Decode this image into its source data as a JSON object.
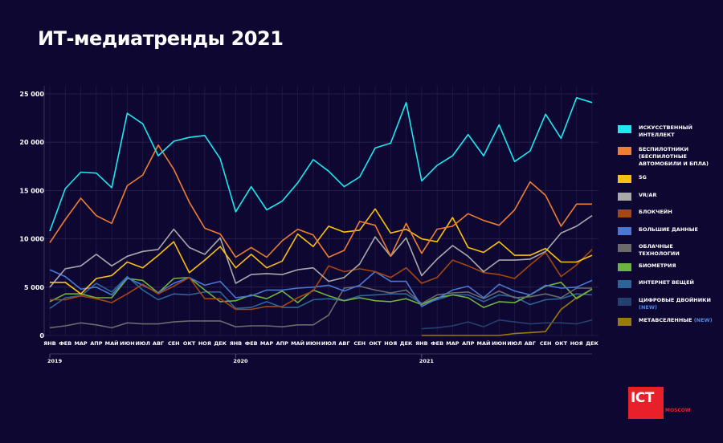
{
  "title": "ИТ-медиатренды 2021",
  "logo": {
    "text": "ICT",
    "subtext": "MOSCOW",
    "color": "#e8202a"
  },
  "chart_data": {
    "type": "line",
    "title": "",
    "ylim": [
      0,
      25000
    ],
    "yticks": [
      "0",
      "5 000",
      "10 000",
      "15 000",
      "20 000",
      "25 000"
    ],
    "ytick_values": [
      0,
      5000,
      10000,
      15000,
      20000,
      25000
    ],
    "grid": true,
    "legend_position": "right",
    "months": [
      "ЯНВ",
      "ФЕВ",
      "МАР",
      "АПР",
      "МАЙ",
      "ИЮН",
      "ИЮЛ",
      "АВГ",
      "СЕН",
      "ОКТ",
      "НОЯ",
      "ДЕК"
    ],
    "years": [
      "2019",
      "2020",
      "2021"
    ],
    "series": [
      {
        "name": "ИСКУССТВЕННЫЙ ИНТЕЛЛЕКТ",
        "color": "#1de9f0",
        "values": [
          10800,
          15200,
          16900,
          16800,
          15300,
          23000,
          21900,
          18600,
          20100,
          20500,
          20700,
          18300,
          12800,
          15400,
          13000,
          13900,
          15800,
          18200,
          17000,
          15400,
          16400,
          19400,
          19900,
          24100,
          16000,
          17600,
          18600,
          20800,
          18600,
          21800,
          18000,
          19100,
          22900,
          20400,
          24600,
          24100
        ]
      },
      {
        "name": "БЕСПИЛОТНИКИ (БЕСПИЛОТНЫЕ АВТОМОБИЛИ И БПЛА)",
        "color": "#ef7d32",
        "values": [
          9600,
          12000,
          14200,
          12400,
          11600,
          15500,
          16600,
          19700,
          17200,
          13800,
          11100,
          10500,
          8100,
          9100,
          8100,
          9800,
          11000,
          10400,
          8100,
          8800,
          11800,
          11400,
          8200,
          11600,
          8500,
          11000,
          11300,
          12600,
          11900,
          11400,
          13000,
          15900,
          14500,
          11300,
          13600,
          13600
        ]
      },
      {
        "name": "5G",
        "color": "#fdc00f",
        "values": [
          5500,
          5500,
          4300,
          5900,
          6200,
          7600,
          7000,
          8300,
          9700,
          6500,
          7800,
          9200,
          7000,
          8400,
          7000,
          7700,
          10500,
          9200,
          11300,
          10700,
          10900,
          13100,
          10600,
          11000,
          10000,
          9700,
          12200,
          9100,
          8600,
          9700,
          8300,
          8300,
          9000,
          7600,
          7600,
          8300
        ]
      },
      {
        "name": "VR/AR",
        "color": "#a9a9ab",
        "values": [
          5000,
          6900,
          7200,
          8400,
          7200,
          8200,
          8700,
          8900,
          11000,
          9100,
          8400,
          10100,
          5400,
          6300,
          6400,
          6300,
          6800,
          7000,
          5600,
          6000,
          7400,
          10200,
          8200,
          10100,
          6200,
          7900,
          9300,
          8200,
          6600,
          7800,
          7800,
          7900,
          8700,
          10600,
          11300,
          12400
        ]
      },
      {
        "name": "БЛОКЧЕЙН",
        "color": "#a5470f",
        "values": [
          3700,
          3700,
          4100,
          3800,
          3400,
          4300,
          5300,
          4300,
          5100,
          6000,
          3800,
          3800,
          2700,
          2700,
          3000,
          3000,
          3900,
          4600,
          7200,
          6600,
          6900,
          6600,
          6000,
          7000,
          5400,
          6000,
          7800,
          7200,
          6500,
          6300,
          5900,
          7300,
          8600,
          6100,
          7300,
          8900
        ]
      },
      {
        "name": "БОЛЬШИЕ ДАННЫЕ",
        "color": "#4877d4",
        "values": [
          6800,
          6100,
          4800,
          5000,
          4200,
          6000,
          5200,
          4400,
          5400,
          6000,
          5200,
          5600,
          3900,
          4100,
          4700,
          4700,
          4900,
          5000,
          5200,
          4600,
          5200,
          6600,
          5600,
          5600,
          3000,
          3800,
          4700,
          5100,
          3900,
          5300,
          4600,
          4200,
          5200,
          4900,
          5000,
          5700
        ]
      },
      {
        "name": "ОБЛАЧНЫЕ ТЕХНОЛОГИИ",
        "color": "#6b6b6e",
        "values": [
          800,
          1000,
          1300,
          1100,
          800,
          1300,
          1200,
          1200,
          1400,
          1500,
          1500,
          1500,
          900,
          1000,
          1000,
          900,
          1100,
          1100,
          2100,
          4900,
          5100,
          4700,
          4400,
          4700,
          3300,
          4200,
          4400,
          4500,
          3800,
          4600,
          3900,
          4000,
          4300,
          3900,
          4900,
          4900
        ]
      },
      {
        "name": "БИОМЕТРИЯ",
        "color": "#6db33f",
        "values": [
          3500,
          4300,
          4300,
          3900,
          3900,
          5900,
          5700,
          4400,
          5900,
          6000,
          4700,
          3500,
          3600,
          4200,
          3800,
          4600,
          3400,
          4700,
          4100,
          3600,
          3900,
          3600,
          3500,
          3800,
          3200,
          3900,
          4200,
          3900,
          2900,
          3500,
          3400,
          4200,
          5100,
          5500,
          3800,
          4800
        ]
      },
      {
        "name": "ИНТЕРНЕТ ВЕЩЕЙ",
        "color": "#2b6599",
        "values": [
          2800,
          3900,
          4100,
          5400,
          4500,
          6100,
          4700,
          3700,
          4300,
          4200,
          4500,
          4500,
          2800,
          2900,
          3500,
          2900,
          2900,
          3700,
          3800,
          3600,
          4100,
          4200,
          4300,
          4300,
          3300,
          3700,
          4200,
          4200,
          3500,
          4200,
          4000,
          3200,
          3700,
          3800,
          4300,
          4200
        ]
      },
      {
        "name": "ЦИФРОВЫЕ ДВОЙНИКИ",
        "badge": "(NEW)",
        "color": "#24406f",
        "values": [
          null,
          null,
          null,
          null,
          null,
          null,
          null,
          null,
          null,
          null,
          null,
          null,
          null,
          null,
          null,
          null,
          null,
          null,
          null,
          null,
          null,
          null,
          null,
          null,
          700,
          800,
          1000,
          1400,
          900,
          1600,
          1400,
          1200,
          1300,
          1300,
          1200,
          1600
        ]
      },
      {
        "name": "МЕТАВСЕЛЕННЫЕ",
        "badge": "(NEW)",
        "color": "#9b7a06",
        "values": [
          null,
          null,
          null,
          null,
          null,
          null,
          null,
          null,
          null,
          null,
          null,
          null,
          null,
          null,
          null,
          null,
          null,
          null,
          null,
          null,
          null,
          null,
          null,
          null,
          0,
          0,
          0,
          0,
          0,
          0,
          200,
          300,
          400,
          2700,
          3900,
          4800
        ]
      }
    ]
  }
}
